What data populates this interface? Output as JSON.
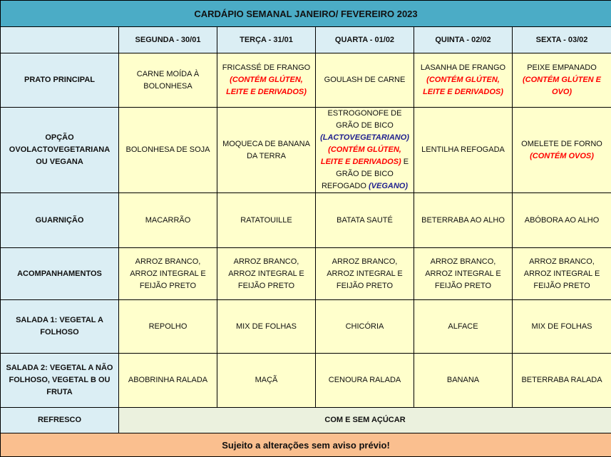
{
  "title": "CARDÁPIO SEMANAL JANEIRO/ FEVEREIRO 2023",
  "days": [
    "SEGUNDA - 30/01",
    "TERÇA - 31/01",
    "QUARTA - 01/02",
    "QUINTA - 02/02",
    "SEXTA - 03/02"
  ],
  "rows": [
    {
      "label": "PRATO PRINCIPAL",
      "cells": [
        [
          {
            "t": "CARNE MOÍDA À BOLONHESA",
            "s": "normal"
          }
        ],
        [
          {
            "t": "FRICASSÉ DE FRANGO ",
            "s": "normal"
          },
          {
            "t": "(CONTÉM GLÚTEN, LEITE E DERIVADOS)",
            "s": "allergen"
          }
        ],
        [
          {
            "t": "GOULASH DE CARNE",
            "s": "normal"
          }
        ],
        [
          {
            "t": "LASANHA DE FRANGO ",
            "s": "normal"
          },
          {
            "t": "(CONTÉM GLÚTEN, LEITE E DERIVADOS)",
            "s": "allergen"
          }
        ],
        [
          {
            "t": "PEIXE EMPANADO ",
            "s": "normal"
          },
          {
            "t": "(CONTÉM GLÚTEN E OVO)",
            "s": "allergen"
          }
        ]
      ]
    },
    {
      "label": "OPÇÃO OVOLACTOVEGETARIANA OU VEGANA",
      "cells": [
        [
          {
            "t": "BOLONHESA DE SOJA",
            "s": "normal"
          }
        ],
        [
          {
            "t": "MOQUECA DE BANANA DA TERRA",
            "s": "normal"
          }
        ],
        [
          {
            "t": "ESTROGONOFE DE GRÃO DE BICO ",
            "s": "normal"
          },
          {
            "t": "(LACTOVEGETARIANO)",
            "s": "diet"
          },
          {
            "t": " (CONTÉM GLÚTEN, LEITE E DERIVADOS)",
            "s": "allergen"
          },
          {
            "t": "  E GRÃO DE BICO REFOGADO ",
            "s": "normal"
          },
          {
            "t": "(VEGANO)",
            "s": "diet"
          }
        ],
        [
          {
            "t": "LENTILHA REFOGADA",
            "s": "normal"
          }
        ],
        [
          {
            "t": "OMELETE DE FORNO ",
            "s": "normal"
          },
          {
            "t": "(CONTÉM OVOS)",
            "s": "allergen"
          }
        ]
      ]
    },
    {
      "label": "GUARNIÇÃO",
      "cells": [
        [
          {
            "t": "MACARRÃO",
            "s": "normal"
          }
        ],
        [
          {
            "t": "RATATOUILLE",
            "s": "normal"
          }
        ],
        [
          {
            "t": "BATATA SAUTÉ",
            "s": "normal"
          }
        ],
        [
          {
            "t": "BETERRABA AO ALHO",
            "s": "normal"
          }
        ],
        [
          {
            "t": "ABÓBORA AO ALHO",
            "s": "normal"
          }
        ]
      ]
    },
    {
      "label": "ACOMPANHAMENTOS",
      "cells": [
        [
          {
            "t": "ARROZ BRANCO, ARROZ INTEGRAL E FEIJÃO PRETO",
            "s": "normal"
          }
        ],
        [
          {
            "t": "ARROZ BRANCO, ARROZ INTEGRAL E FEIJÃO PRETO",
            "s": "normal"
          }
        ],
        [
          {
            "t": "ARROZ BRANCO, ARROZ INTEGRAL E FEIJÃO PRETO",
            "s": "normal"
          }
        ],
        [
          {
            "t": "ARROZ BRANCO, ARROZ INTEGRAL E FEIJÃO PRETO",
            "s": "normal"
          }
        ],
        [
          {
            "t": "ARROZ BRANCO, ARROZ INTEGRAL E FEIJÃO PRETO",
            "s": "normal"
          }
        ]
      ]
    },
    {
      "label": "SALADA 1: VEGETAL A FOLHOSO",
      "cells": [
        [
          {
            "t": "REPOLHO",
            "s": "normal"
          }
        ],
        [
          {
            "t": "MIX DE FOLHAS",
            "s": "normal"
          }
        ],
        [
          {
            "t": "CHICÓRIA",
            "s": "normal"
          }
        ],
        [
          {
            "t": "ALFACE",
            "s": "normal"
          }
        ],
        [
          {
            "t": "MIX DE FOLHAS",
            "s": "normal"
          }
        ]
      ]
    },
    {
      "label": "SALADA 2: VEGETAL A NÃO FOLHOSO,   VEGETAL B OU FRUTA",
      "cells": [
        [
          {
            "t": "ABOBRINHA RALADA",
            "s": "normal"
          }
        ],
        [
          {
            "t": "MAÇÃ",
            "s": "normal"
          }
        ],
        [
          {
            "t": "CENOURA RALADA",
            "s": "normal"
          }
        ],
        [
          {
            "t": "BANANA",
            "s": "normal"
          }
        ],
        [
          {
            "t": "BETERRABA RALADA",
            "s": "normal"
          }
        ]
      ]
    }
  ],
  "refresco": {
    "label": "REFRESCO",
    "value": "COM E SEM AÇÚCAR"
  },
  "footer": "Sujeito a alterações sem aviso prévio!",
  "colors": {
    "title_bg": "#4bacc6",
    "header_bg": "#dbeef4",
    "cell_bg": "#ffffcc",
    "refresco_bg": "#ebf1de",
    "footer_bg": "#fabf8f",
    "allergen": "#ff0000",
    "diet": "#1f1f8f"
  }
}
